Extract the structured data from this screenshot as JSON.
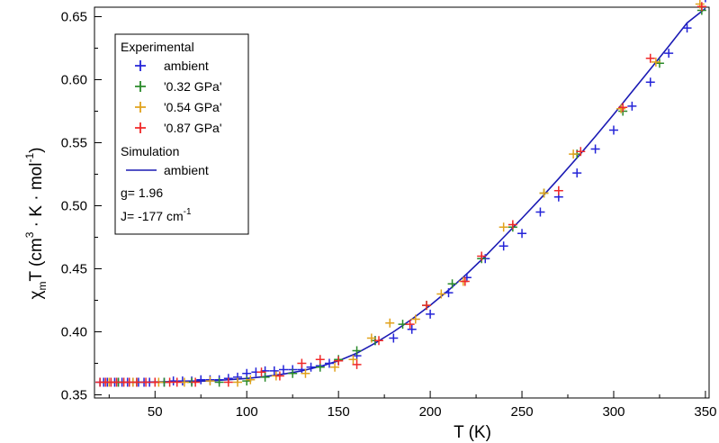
{
  "chart_data": {
    "type": "scatter",
    "title": "",
    "xlabel": "T (K)",
    "ylabel": "χmT (cm3·K·mol-1)",
    "ylabel_parts": {
      "chi": "χ",
      "sub": "m",
      "main": "T (cm",
      "sup1": "3",
      "mid": " · K · mol",
      "sup2": "-1",
      "end": ")"
    },
    "xlim": [
      17,
      352
    ],
    "ylim": [
      0.3475,
      0.6575
    ],
    "x_ticks": [
      50,
      100,
      150,
      200,
      250,
      300,
      350
    ],
    "y_ticks": [
      0.35,
      0.4,
      0.45,
      0.5,
      0.55,
      0.6,
      0.65
    ],
    "y_tick_labels": [
      "0.35",
      "0.40",
      "0.45",
      "0.50",
      "0.55",
      "0.60",
      "0.65"
    ],
    "grid": false,
    "legend_position": "top-left",
    "legend": {
      "header_experimental": "Experimental",
      "header_simulation": "Simulation",
      "g_text": "g= 1.96",
      "j_text": "J= -177 cm",
      "j_sup": "-1"
    },
    "series": [
      {
        "name": "ambient",
        "marker": "+",
        "color": "#2424d8",
        "points": [
          [
            20,
            0.36
          ],
          [
            22,
            0.36
          ],
          [
            24,
            0.36
          ],
          [
            26,
            0.36
          ],
          [
            28,
            0.36
          ],
          [
            30,
            0.36
          ],
          [
            32,
            0.36
          ],
          [
            35,
            0.36
          ],
          [
            38,
            0.36
          ],
          [
            41,
            0.36
          ],
          [
            44,
            0.36
          ],
          [
            47,
            0.36
          ],
          [
            50,
            0.36
          ],
          [
            55,
            0.36
          ],
          [
            60,
            0.361
          ],
          [
            65,
            0.361
          ],
          [
            70,
            0.361
          ],
          [
            75,
            0.362
          ],
          [
            80,
            0.362
          ],
          [
            85,
            0.362
          ],
          [
            90,
            0.363
          ],
          [
            95,
            0.364
          ],
          [
            100,
            0.367
          ],
          [
            105,
            0.368
          ],
          [
            110,
            0.369
          ],
          [
            115,
            0.369
          ],
          [
            120,
            0.37
          ],
          [
            125,
            0.37
          ],
          [
            130,
            0.37
          ],
          [
            135,
            0.372
          ],
          [
            140,
            0.373
          ],
          [
            145,
            0.375
          ],
          [
            150,
            0.377
          ],
          [
            160,
            0.381
          ],
          [
            170,
            0.393
          ],
          [
            180,
            0.395
          ],
          [
            190,
            0.402
          ],
          [
            200,
            0.414
          ],
          [
            210,
            0.431
          ],
          [
            220,
            0.443
          ],
          [
            230,
            0.458
          ],
          [
            240,
            0.468
          ],
          [
            250,
            0.478
          ],
          [
            260,
            0.495
          ],
          [
            270,
            0.507
          ],
          [
            280,
            0.526
          ],
          [
            290,
            0.545
          ],
          [
            300,
            0.56
          ],
          [
            310,
            0.579
          ],
          [
            320,
            0.598
          ],
          [
            330,
            0.621
          ],
          [
            340,
            0.641
          ],
          [
            350,
            0.665
          ]
        ]
      },
      {
        "name": "'0.32 GPa'",
        "marker": "+",
        "color": "#2a8a2a",
        "points": [
          [
            30,
            0.36
          ],
          [
            40,
            0.36
          ],
          [
            55,
            0.36
          ],
          [
            70,
            0.36
          ],
          [
            85,
            0.36
          ],
          [
            100,
            0.361
          ],
          [
            110,
            0.364
          ],
          [
            125,
            0.367
          ],
          [
            140,
            0.372
          ],
          [
            150,
            0.378
          ],
          [
            160,
            0.385
          ],
          [
            170,
            0.393
          ],
          [
            185,
            0.406
          ],
          [
            198,
            0.421
          ],
          [
            212,
            0.438
          ],
          [
            228,
            0.458
          ],
          [
            245,
            0.483
          ],
          [
            262,
            0.51
          ],
          [
            280,
            0.541
          ],
          [
            305,
            0.575
          ],
          [
            325,
            0.613
          ],
          [
            348,
            0.655
          ]
        ]
      },
      {
        "name": "'0.54 GPa'",
        "marker": "+",
        "color": "#e1a21c",
        "points": [
          [
            25,
            0.36
          ],
          [
            38,
            0.36
          ],
          [
            52,
            0.36
          ],
          [
            66,
            0.36
          ],
          [
            80,
            0.361
          ],
          [
            95,
            0.36
          ],
          [
            102,
            0.362
          ],
          [
            116,
            0.365
          ],
          [
            132,
            0.367
          ],
          [
            148,
            0.372
          ],
          [
            158,
            0.378
          ],
          [
            168,
            0.395
          ],
          [
            178,
            0.407
          ],
          [
            192,
            0.41
          ],
          [
            206,
            0.43
          ],
          [
            218,
            0.44
          ],
          [
            240,
            0.483
          ],
          [
            262,
            0.51
          ],
          [
            278,
            0.541
          ],
          [
            304,
            0.577
          ],
          [
            323,
            0.614
          ],
          [
            347,
            0.66
          ]
        ]
      },
      {
        "name": "'0.87 GPa'",
        "marker": "+",
        "color": "#f02828",
        "points": [
          [
            20,
            0.36
          ],
          [
            23,
            0.36
          ],
          [
            26,
            0.36
          ],
          [
            29,
            0.36
          ],
          [
            33,
            0.36
          ],
          [
            36,
            0.36
          ],
          [
            40,
            0.36
          ],
          [
            45,
            0.36
          ],
          [
            50,
            0.36
          ],
          [
            58,
            0.36
          ],
          [
            62,
            0.36
          ],
          [
            72,
            0.36
          ],
          [
            90,
            0.36
          ],
          [
            108,
            0.368
          ],
          [
            118,
            0.365
          ],
          [
            130,
            0.375
          ],
          [
            140,
            0.378
          ],
          [
            150,
            0.377
          ],
          [
            160,
            0.374
          ],
          [
            172,
            0.393
          ],
          [
            189,
            0.406
          ],
          [
            198,
            0.421
          ],
          [
            219,
            0.44
          ],
          [
            228,
            0.46
          ],
          [
            245,
            0.485
          ],
          [
            270,
            0.512
          ],
          [
            282,
            0.543
          ],
          [
            305,
            0.578
          ],
          [
            320,
            0.617
          ],
          [
            348,
            0.658
          ]
        ]
      }
    ],
    "simulation": {
      "name": "ambient",
      "color": "#1a1ab4",
      "x": [
        20,
        40,
        60,
        80,
        100,
        110,
        120,
        130,
        140,
        150,
        160,
        170,
        180,
        190,
        200,
        210,
        220,
        230,
        240,
        250,
        260,
        270,
        280,
        290,
        300,
        310,
        320,
        330,
        340,
        350
      ],
      "y": [
        0.36,
        0.36,
        0.3605,
        0.361,
        0.363,
        0.3645,
        0.3665,
        0.369,
        0.3725,
        0.377,
        0.383,
        0.391,
        0.4,
        0.41,
        0.421,
        0.433,
        0.446,
        0.46,
        0.475,
        0.49,
        0.5055,
        0.5215,
        0.538,
        0.555,
        0.5725,
        0.5905,
        0.6085,
        0.6265,
        0.645,
        0.6565
      ]
    }
  }
}
